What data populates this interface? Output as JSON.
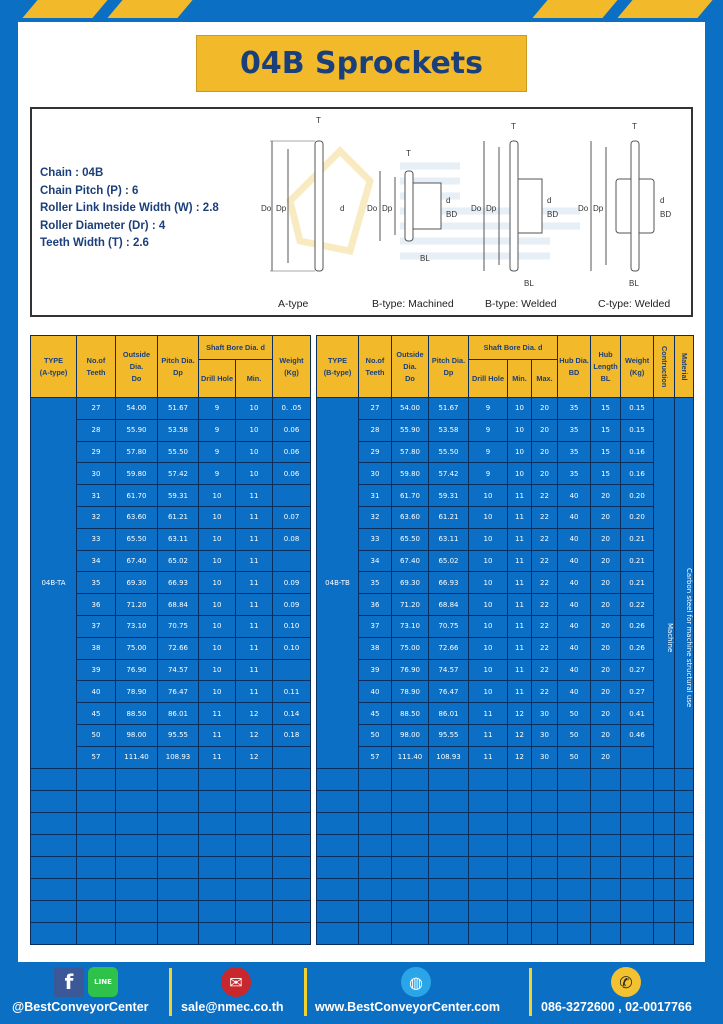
{
  "title": "04B Sprockets",
  "specs": [
    "Chain : 04B",
    "Chain Pitch (P) : 6",
    "Roller Link Inside Width (W) : 2.8",
    "Roller Diameter (Dr) : 4",
    "Teeth Width (T) : 2.6"
  ],
  "diagram": {
    "labels": [
      "A-type",
      "B-type: Machined",
      "B-type: Welded",
      "C-type: Welded"
    ],
    "dims": {
      "T": "T",
      "Do": "Do",
      "Dp": "Dp",
      "d": "d",
      "BD": "BD",
      "BL": "BL"
    },
    "watermark": [
      "BEST",
      "CONVEYOR",
      "CENTER"
    ]
  },
  "colors": {
    "background": "#0b6fc4",
    "accent": "#f2b92b",
    "cell": "#0b6fc6",
    "title_text": "#1b3f7a"
  },
  "table_a": {
    "headers": {
      "type": "TYPE",
      "type_sub": "(A-type)",
      "teeth": "No.of",
      "teeth_sub": "Teeth",
      "do": "Outside",
      "do_sub": "Dia.",
      "do_sub2": "Do",
      "dp": "Pitch Dia.",
      "dp_sub": "Dp",
      "bore": "Shaft Bore Dia. d",
      "drill": "Drill Hole",
      "min": "Min.",
      "weight": "Weight",
      "weight_sub": "(Kg)"
    },
    "type_value": "04B-TA",
    "rows": [
      [
        "27",
        "54.00",
        "51.67",
        "9",
        "10",
        "0. .05"
      ],
      [
        "28",
        "55.90",
        "53.58",
        "9",
        "10",
        "0.06"
      ],
      [
        "29",
        "57.80",
        "55.50",
        "9",
        "10",
        "0.06"
      ],
      [
        "30",
        "59.80",
        "57.42",
        "9",
        "10",
        "0.06"
      ],
      [
        "31",
        "61.70",
        "59.31",
        "10",
        "11",
        ""
      ],
      [
        "32",
        "63.60",
        "61.21",
        "10",
        "11",
        "0.07"
      ],
      [
        "33",
        "65.50",
        "63.11",
        "10",
        "11",
        "0.08"
      ],
      [
        "34",
        "67.40",
        "65.02",
        "10",
        "11",
        ""
      ],
      [
        "35",
        "69.30",
        "66.93",
        "10",
        "11",
        "0.09"
      ],
      [
        "36",
        "71.20",
        "68.84",
        "10",
        "11",
        "0.09"
      ],
      [
        "37",
        "73.10",
        "70.75",
        "10",
        "11",
        "0.10"
      ],
      [
        "38",
        "75.00",
        "72.66",
        "10",
        "11",
        "0.10"
      ],
      [
        "39",
        "76.90",
        "74.57",
        "10",
        "11",
        ""
      ],
      [
        "40",
        "78.90",
        "76.47",
        "10",
        "11",
        "0.11"
      ],
      [
        "45",
        "88.50",
        "86.01",
        "11",
        "12",
        "0.14"
      ],
      [
        "50",
        "98.00",
        "95.55",
        "11",
        "12",
        "0.18"
      ],
      [
        "57",
        "111.40",
        "108.93",
        "11",
        "12",
        ""
      ]
    ]
  },
  "table_b": {
    "headers": {
      "type": "TYPE",
      "type_sub": "(B-type)",
      "teeth": "No.of",
      "teeth_sub": "Teeth",
      "do": "Outside",
      "do_sub": "Dia.",
      "do_sub2": "Do",
      "dp": "Pitch Dia.",
      "dp_sub": "Dp",
      "bore": "Shaft Bore Dia. d",
      "drill": "Drill Hole",
      "min": "Min.",
      "max": "Max.",
      "hub_dia": "Hub Dia.",
      "hub_dia_sub": "BD",
      "hub_len": "Hub",
      "hub_len_sub": "Length",
      "hub_len_sub2": "BL",
      "weight": "Weight",
      "weight_sub": "(Kg)",
      "construction": "Contruction",
      "material": "Material"
    },
    "type_value": "04B-TB",
    "construction_value": "Machine",
    "material_value": "Carbon steel for machine structural use",
    "rows": [
      [
        "27",
        "54.00",
        "51.67",
        "9",
        "10",
        "20",
        "35",
        "15",
        "0.15"
      ],
      [
        "28",
        "55.90",
        "53.58",
        "9",
        "10",
        "20",
        "35",
        "15",
        "0.15"
      ],
      [
        "29",
        "57.80",
        "55.50",
        "9",
        "10",
        "20",
        "35",
        "15",
        "0.16"
      ],
      [
        "30",
        "59.80",
        "57.42",
        "9",
        "10",
        "20",
        "35",
        "15",
        "0.16"
      ],
      [
        "31",
        "61.70",
        "59.31",
        "10",
        "11",
        "22",
        "40",
        "20",
        "0.20"
      ],
      [
        "32",
        "63.60",
        "61.21",
        "10",
        "11",
        "22",
        "40",
        "20",
        "0.20"
      ],
      [
        "33",
        "65.50",
        "63.11",
        "10",
        "11",
        "22",
        "40",
        "20",
        "0.21"
      ],
      [
        "34",
        "67.40",
        "65.02",
        "10",
        "11",
        "22",
        "40",
        "20",
        "0.21"
      ],
      [
        "35",
        "69.30",
        "66.93",
        "10",
        "11",
        "22",
        "40",
        "20",
        "0.21"
      ],
      [
        "36",
        "71.20",
        "68.84",
        "10",
        "11",
        "22",
        "40",
        "20",
        "0.22"
      ],
      [
        "37",
        "73.10",
        "70.75",
        "10",
        "11",
        "22",
        "40",
        "20",
        "0.26"
      ],
      [
        "38",
        "75.00",
        "72.66",
        "10",
        "11",
        "22",
        "40",
        "20",
        "0.26"
      ],
      [
        "39",
        "76.90",
        "74.57",
        "10",
        "11",
        "22",
        "40",
        "20",
        "0.27"
      ],
      [
        "40",
        "78.90",
        "76.47",
        "10",
        "11",
        "22",
        "40",
        "20",
        "0.27"
      ],
      [
        "45",
        "88.50",
        "86.01",
        "11",
        "12",
        "30",
        "50",
        "20",
        "0.41"
      ],
      [
        "50",
        "98.00",
        "95.55",
        "11",
        "12",
        "30",
        "50",
        "20",
        "0.46"
      ],
      [
        "57",
        "111.40",
        "108.93",
        "11",
        "12",
        "30",
        "50",
        "20",
        ""
      ]
    ]
  },
  "footer": {
    "social": "@BestConveyorCenter",
    "line_label": "LINE",
    "email": "sale@nmec.co.th",
    "website": "www.BestConveyorCenter.com",
    "phone": "086-3272600 , 02-0017766"
  }
}
